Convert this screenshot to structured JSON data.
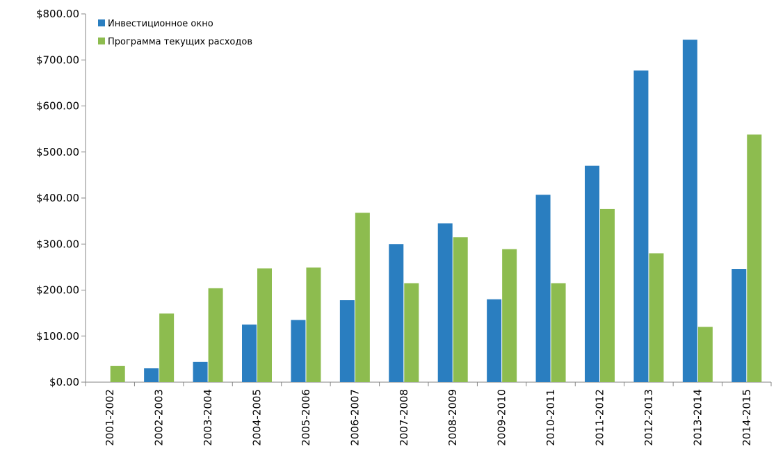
{
  "chart_data": {
    "type": "bar",
    "title": "",
    "xlabel": "",
    "ylabel": "",
    "ylim": [
      0,
      800
    ],
    "y_ticks": [
      0,
      100,
      200,
      300,
      400,
      500,
      600,
      700,
      800
    ],
    "y_tick_labels": [
      "$0.00",
      "$100.00",
      "$200.00",
      "$300.00",
      "$400.00",
      "$500.00",
      "$600.00",
      "$700.00",
      "$800.00"
    ],
    "grid": false,
    "legend_position": "top-left",
    "categories": [
      "2001-2002",
      "2002-2003",
      "2003-2004",
      "2004-2005",
      "2005-2006",
      "2006-2007",
      "2007-2008",
      "2008-2009",
      "2009-2010",
      "2010-2011",
      "2011-2012",
      "2012-2013",
      "2013-2014",
      "2014-2015"
    ],
    "series": [
      {
        "name": "Инвестиционное окно",
        "color": "#2a7ec0",
        "values": [
          0,
          30,
          44,
          125,
          135,
          178,
          300,
          345,
          180,
          407,
          470,
          677,
          744,
          246
        ]
      },
      {
        "name": "Программа текущих расходов",
        "color": "#8dbc4f",
        "values": [
          35,
          149,
          204,
          247,
          249,
          368,
          215,
          315,
          289,
          215,
          376,
          280,
          120,
          538
        ]
      }
    ]
  }
}
